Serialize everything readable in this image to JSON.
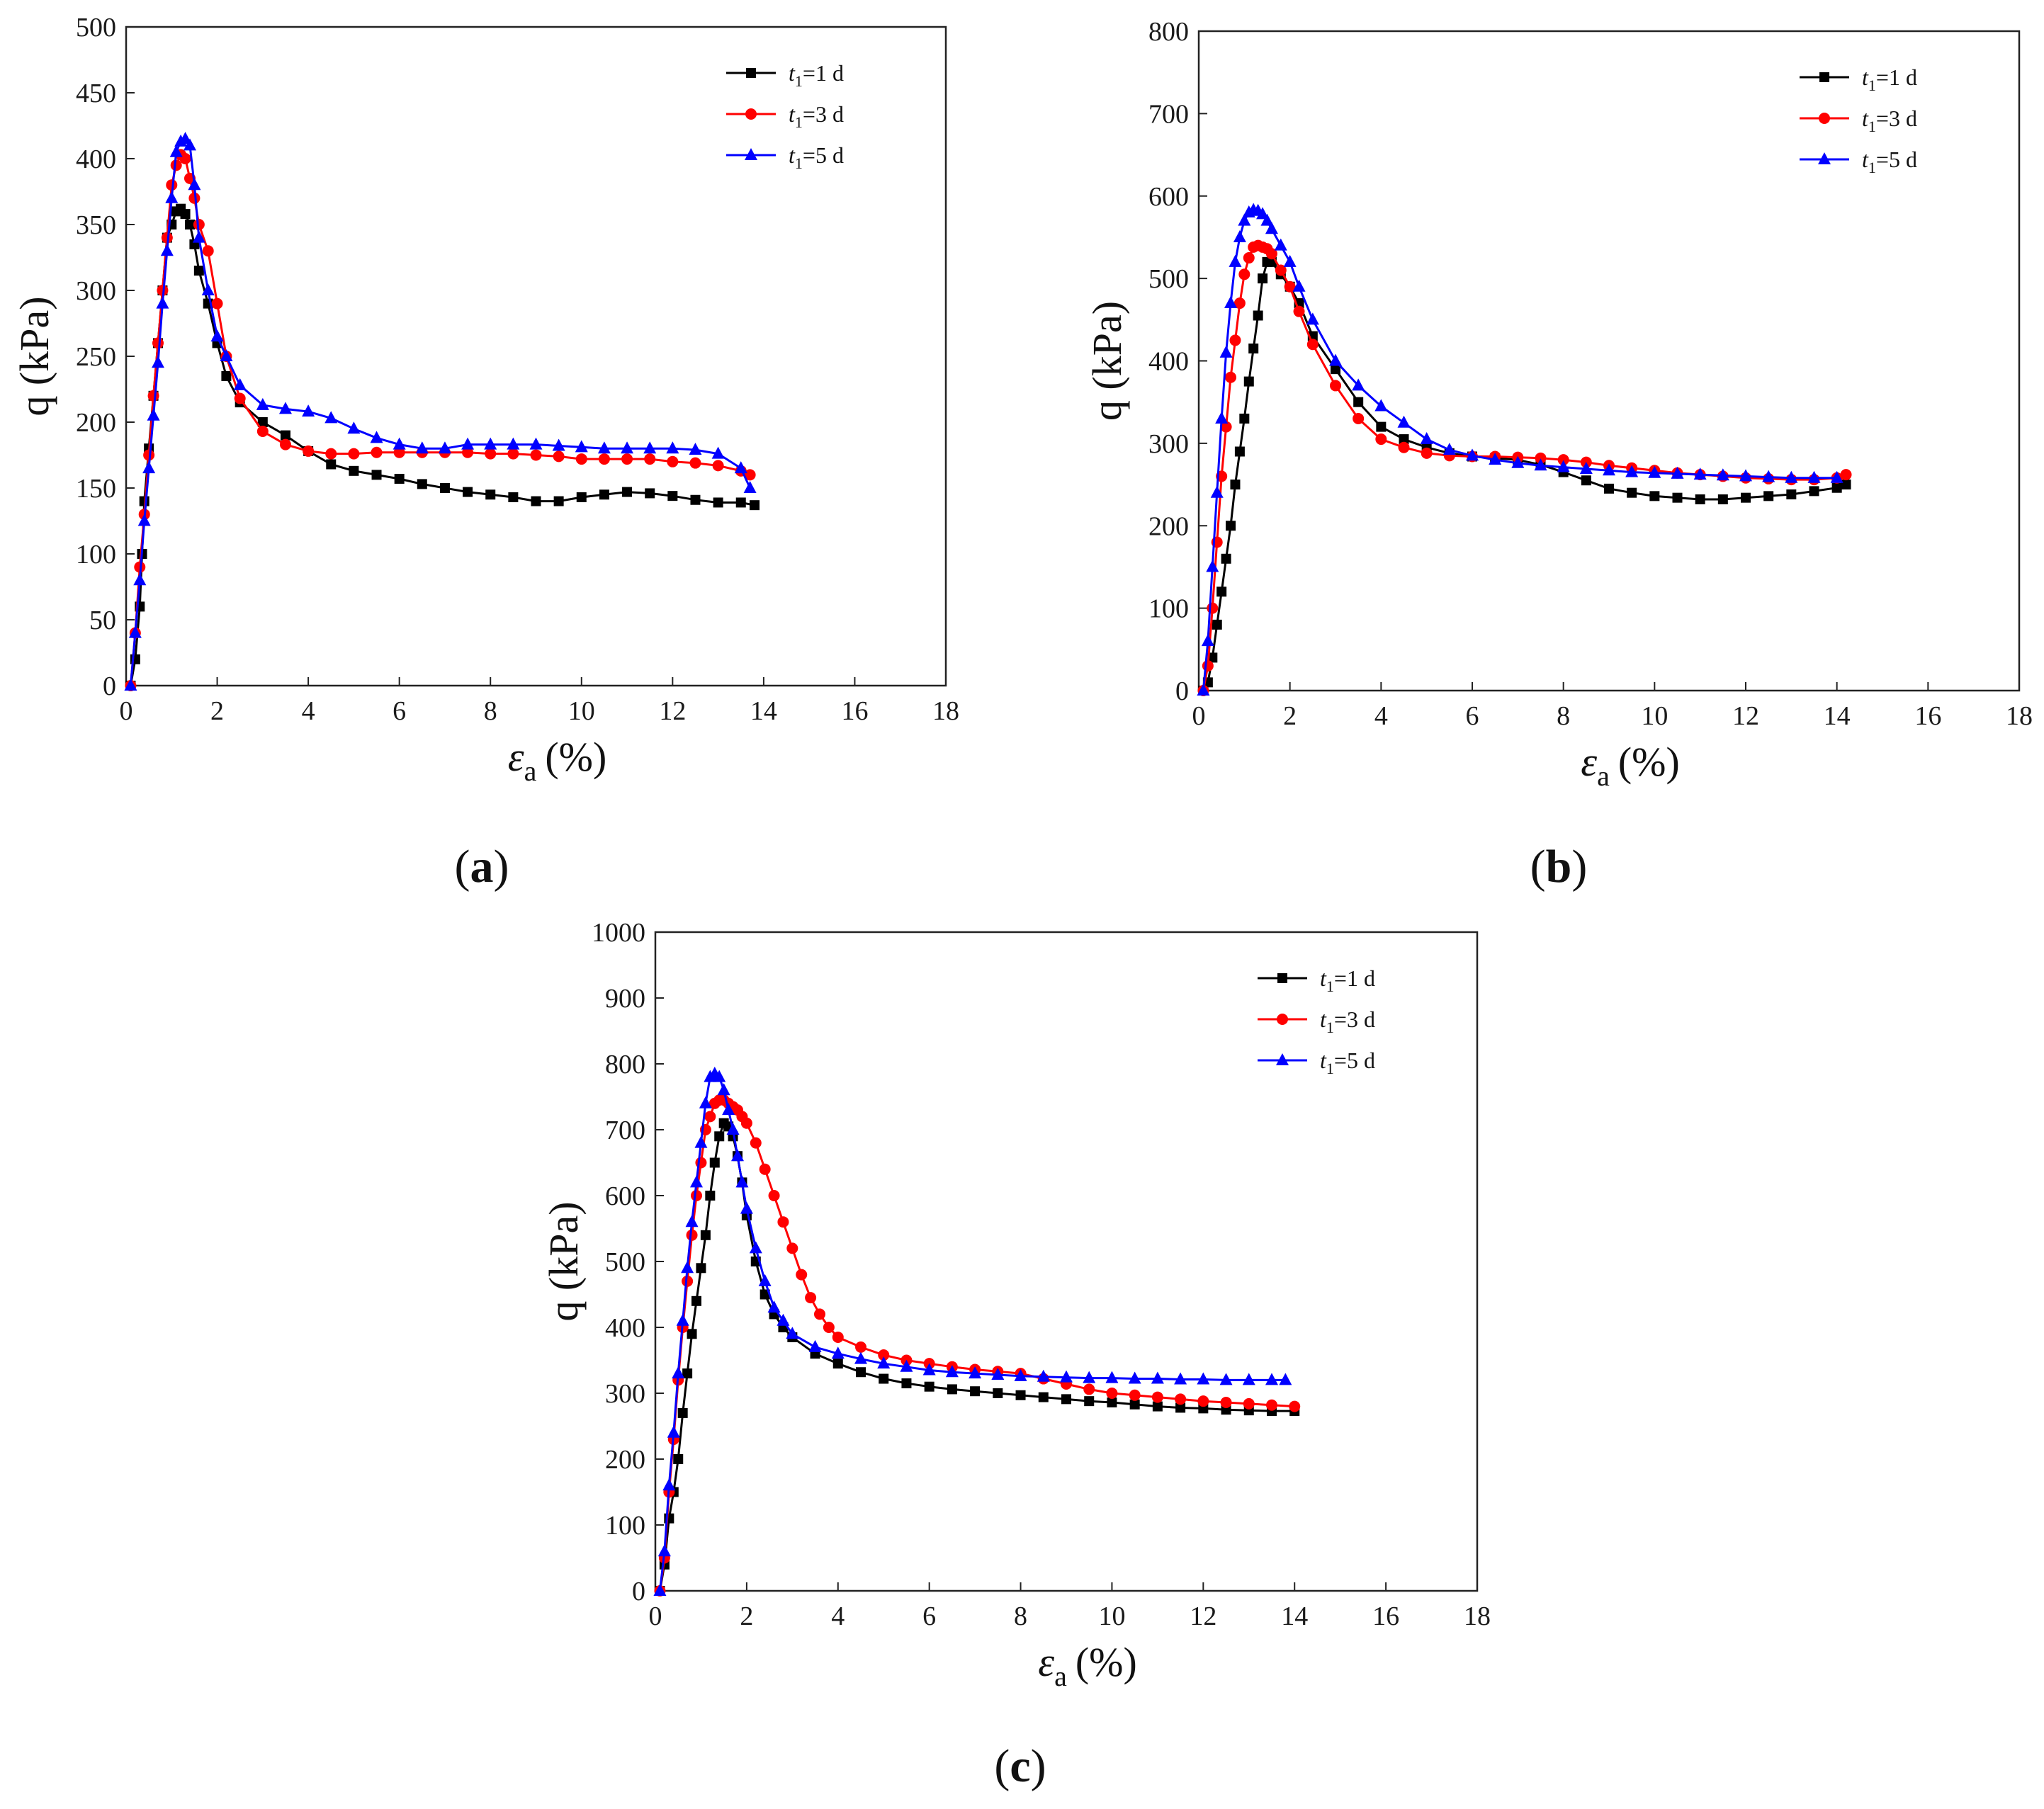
{
  "chart_data": [
    {
      "type": "line",
      "panel_label": "(a)",
      "panel_letter": "a",
      "xlabel": "εa (%)",
      "xlabel_main": "ε",
      "xlabel_sub": "a",
      "xlabel_unit": "(%)",
      "ylabel": "q (kPa)",
      "xlim": [
        0,
        18
      ],
      "ylim": [
        0,
        500
      ],
      "xticks": [
        0,
        2,
        4,
        6,
        8,
        10,
        12,
        14,
        16,
        18
      ],
      "yticks": [
        0,
        50,
        100,
        150,
        200,
        250,
        300,
        350,
        400,
        450,
        500
      ],
      "legend_position": "top-right",
      "series": [
        {
          "name": "t1=1 d",
          "label_main": "t",
          "label_sub": "1",
          "label_rest": "=1 d",
          "color": "#000000",
          "marker": "square",
          "x": [
            0.1,
            0.2,
            0.3,
            0.35,
            0.4,
            0.5,
            0.6,
            0.7,
            0.8,
            0.9,
            1.0,
            1.1,
            1.2,
            1.3,
            1.4,
            1.5,
            1.6,
            1.8,
            2.0,
            2.2,
            2.5,
            3.0,
            3.5,
            4.0,
            4.5,
            5.0,
            5.5,
            6.0,
            6.5,
            7.0,
            7.5,
            8.0,
            8.5,
            9.0,
            9.5,
            10.0,
            10.5,
            11.0,
            11.5,
            12.0,
            12.5,
            13.0,
            13.5,
            13.8
          ],
          "y": [
            0,
            20,
            60,
            100,
            140,
            180,
            220,
            260,
            300,
            340,
            350,
            360,
            362,
            358,
            350,
            335,
            315,
            290,
            260,
            235,
            215,
            200,
            190,
            178,
            168,
            163,
            160,
            157,
            153,
            150,
            147,
            145,
            143,
            140,
            140,
            143,
            145,
            147,
            146,
            144,
            141,
            139,
            139,
            137
          ]
        },
        {
          "name": "t1=3 d",
          "label_main": "t",
          "label_sub": "1",
          "label_rest": "=3 d",
          "color": "#ff0000",
          "marker": "circle",
          "x": [
            0.1,
            0.2,
            0.3,
            0.4,
            0.5,
            0.6,
            0.7,
            0.8,
            0.9,
            1.0,
            1.1,
            1.2,
            1.3,
            1.4,
            1.5,
            1.6,
            1.8,
            2.0,
            2.2,
            2.5,
            3.0,
            3.5,
            4.0,
            4.5,
            5.0,
            5.5,
            6.0,
            6.5,
            7.0,
            7.5,
            8.0,
            8.5,
            9.0,
            9.5,
            10.0,
            10.5,
            11.0,
            11.5,
            12.0,
            12.5,
            13.0,
            13.5,
            13.7
          ],
          "y": [
            0,
            40,
            90,
            130,
            175,
            220,
            260,
            300,
            340,
            380,
            395,
            403,
            400,
            385,
            370,
            350,
            330,
            290,
            250,
            218,
            193,
            183,
            178,
            176,
            176,
            177,
            177,
            177,
            177,
            177,
            176,
            176,
            175,
            174,
            172,
            172,
            172,
            172,
            170,
            169,
            167,
            163,
            160
          ]
        },
        {
          "name": "t1=5 d",
          "label_main": "t",
          "label_sub": "1",
          "label_rest": "=5 d",
          "color": "#0000ff",
          "marker": "triangle",
          "x": [
            0.1,
            0.2,
            0.3,
            0.4,
            0.5,
            0.6,
            0.7,
            0.8,
            0.9,
            1.0,
            1.1,
            1.2,
            1.3,
            1.4,
            1.5,
            1.6,
            1.8,
            2.0,
            2.2,
            2.5,
            3.0,
            3.5,
            4.0,
            4.5,
            5.0,
            5.5,
            6.0,
            6.5,
            7.0,
            7.5,
            8.0,
            8.5,
            9.0,
            9.5,
            10.0,
            10.5,
            11.0,
            11.5,
            12.0,
            12.5,
            13.0,
            13.5,
            13.7
          ],
          "y": [
            0,
            40,
            80,
            125,
            165,
            205,
            245,
            290,
            330,
            370,
            405,
            413,
            415,
            410,
            380,
            340,
            300,
            265,
            250,
            228,
            213,
            210,
            208,
            203,
            195,
            188,
            183,
            180,
            180,
            183,
            183,
            183,
            183,
            182,
            181,
            180,
            180,
            180,
            180,
            179,
            176,
            165,
            150
          ]
        }
      ]
    },
    {
      "type": "line",
      "panel_label": "(b)",
      "panel_letter": "b",
      "xlabel": "εa (%)",
      "xlabel_main": "ε",
      "xlabel_sub": "a",
      "xlabel_unit": "(%)",
      "ylabel": "q (kPa)",
      "xlim": [
        0,
        18
      ],
      "ylim": [
        0,
        800
      ],
      "xticks": [
        0,
        2,
        4,
        6,
        8,
        10,
        12,
        14,
        16,
        18
      ],
      "yticks": [
        0,
        100,
        200,
        300,
        400,
        500,
        600,
        700,
        800
      ],
      "legend_position": "top-right",
      "series": [
        {
          "name": "t1=1 d",
          "label_main": "t",
          "label_sub": "1",
          "label_rest": "=1 d",
          "color": "#000000",
          "marker": "square",
          "x": [
            0.1,
            0.2,
            0.3,
            0.4,
            0.5,
            0.6,
            0.7,
            0.8,
            0.9,
            1.0,
            1.1,
            1.2,
            1.3,
            1.4,
            1.5,
            1.6,
            1.8,
            2.0,
            2.2,
            2.5,
            3.0,
            3.5,
            4.0,
            4.5,
            5.0,
            5.5,
            6.0,
            6.5,
            7.0,
            7.5,
            8.0,
            8.5,
            9.0,
            9.5,
            10.0,
            10.5,
            11.0,
            11.5,
            12.0,
            12.5,
            13.0,
            13.5,
            14.0,
            14.2
          ],
          "y": [
            0,
            10,
            40,
            80,
            120,
            160,
            200,
            250,
            290,
            330,
            375,
            415,
            455,
            500,
            520,
            520,
            505,
            490,
            470,
            430,
            390,
            350,
            320,
            305,
            295,
            288,
            284,
            282,
            280,
            274,
            265,
            255,
            245,
            240,
            236,
            234,
            232,
            232,
            234,
            236,
            238,
            242,
            246,
            250
          ]
        },
        {
          "name": "t1=3 d",
          "label_main": "t",
          "label_sub": "1",
          "label_rest": "=3 d",
          "color": "#ff0000",
          "marker": "circle",
          "x": [
            0.1,
            0.2,
            0.3,
            0.4,
            0.5,
            0.6,
            0.7,
            0.8,
            0.9,
            1.0,
            1.1,
            1.2,
            1.3,
            1.4,
            1.5,
            1.6,
            1.8,
            2.0,
            2.2,
            2.5,
            3.0,
            3.5,
            4.0,
            4.5,
            5.0,
            5.5,
            6.0,
            6.5,
            7.0,
            7.5,
            8.0,
            8.5,
            9.0,
            9.5,
            10.0,
            10.5,
            11.0,
            11.5,
            12.0,
            12.5,
            13.0,
            13.5,
            14.0,
            14.2
          ],
          "y": [
            0,
            30,
            100,
            180,
            260,
            320,
            380,
            425,
            470,
            505,
            525,
            538,
            540,
            538,
            536,
            530,
            510,
            490,
            460,
            420,
            370,
            330,
            305,
            295,
            288,
            285,
            284,
            284,
            283,
            282,
            280,
            277,
            273,
            270,
            267,
            264,
            262,
            260,
            258,
            257,
            256,
            256,
            258,
            262
          ]
        },
        {
          "name": "t1=5 d",
          "label_main": "t",
          "label_sub": "1",
          "label_rest": "=5 d",
          "color": "#0000ff",
          "marker": "triangle",
          "x": [
            0.1,
            0.2,
            0.3,
            0.4,
            0.5,
            0.6,
            0.7,
            0.8,
            0.9,
            1.0,
            1.1,
            1.2,
            1.3,
            1.4,
            1.5,
            1.6,
            1.8,
            2.0,
            2.2,
            2.5,
            3.0,
            3.5,
            4.0,
            4.5,
            5.0,
            5.5,
            6.0,
            6.5,
            7.0,
            7.5,
            8.0,
            8.5,
            9.0,
            9.5,
            10.0,
            10.5,
            11.0,
            11.5,
            12.0,
            12.5,
            13.0,
            13.5,
            14.0
          ],
          "y": [
            0,
            60,
            150,
            240,
            330,
            410,
            470,
            520,
            550,
            570,
            580,
            583,
            582,
            578,
            570,
            560,
            540,
            520,
            490,
            450,
            400,
            370,
            345,
            325,
            305,
            292,
            285,
            280,
            276,
            273,
            271,
            269,
            267,
            265,
            264,
            263,
            262,
            261,
            260,
            259,
            258,
            258,
            258
          ]
        }
      ]
    },
    {
      "type": "line",
      "panel_label": "(c)",
      "panel_letter": "c",
      "xlabel": "εa (%)",
      "xlabel_main": "ε",
      "xlabel_sub": "a",
      "xlabel_unit": "(%)",
      "ylabel": "q (kPa)",
      "xlim": [
        0,
        18
      ],
      "ylim": [
        0,
        1000
      ],
      "xticks": [
        0,
        2,
        4,
        6,
        8,
        10,
        12,
        14,
        16,
        18
      ],
      "yticks": [
        0,
        100,
        200,
        300,
        400,
        500,
        600,
        700,
        800,
        900,
        1000
      ],
      "legend_position": "top-right",
      "series": [
        {
          "name": "t1=1 d",
          "label_main": "t",
          "label_sub": "1",
          "label_rest": "=1 d",
          "color": "#000000",
          "marker": "square",
          "x": [
            0.1,
            0.2,
            0.3,
            0.4,
            0.5,
            0.6,
            0.7,
            0.8,
            0.9,
            1.0,
            1.1,
            1.2,
            1.3,
            1.4,
            1.5,
            1.6,
            1.7,
            1.8,
            1.9,
            2.0,
            2.2,
            2.4,
            2.6,
            2.8,
            3.0,
            3.5,
            4.0,
            4.5,
            5.0,
            5.5,
            6.0,
            6.5,
            7.0,
            7.5,
            8.0,
            8.5,
            9.0,
            9.5,
            10.0,
            10.5,
            11.0,
            11.5,
            12.0,
            12.5,
            13.0,
            13.5,
            14.0
          ],
          "y": [
            0,
            40,
            110,
            150,
            200,
            270,
            330,
            390,
            440,
            490,
            540,
            600,
            650,
            690,
            710,
            705,
            690,
            660,
            620,
            570,
            500,
            450,
            420,
            400,
            385,
            360,
            345,
            332,
            322,
            315,
            310,
            306,
            303,
            300,
            297,
            294,
            291,
            288,
            286,
            283,
            280,
            278,
            277,
            275,
            274,
            273,
            273
          ]
        },
        {
          "name": "t1=3 d",
          "label_main": "t",
          "label_sub": "1",
          "label_rest": "=3 d",
          "color": "#ff0000",
          "marker": "circle",
          "x": [
            0.1,
            0.2,
            0.3,
            0.4,
            0.5,
            0.6,
            0.7,
            0.8,
            0.9,
            1.0,
            1.1,
            1.2,
            1.3,
            1.4,
            1.5,
            1.6,
            1.7,
            1.8,
            1.9,
            2.0,
            2.2,
            2.4,
            2.6,
            2.8,
            3.0,
            3.2,
            3.4,
            3.6,
            3.8,
            4.0,
            4.5,
            5.0,
            5.5,
            6.0,
            6.5,
            7.0,
            7.5,
            8.0,
            8.5,
            9.0,
            9.5,
            10.0,
            10.5,
            11.0,
            11.5,
            12.0,
            12.5,
            13.0,
            13.5,
            14.0
          ],
          "y": [
            0,
            50,
            150,
            230,
            320,
            400,
            470,
            540,
            600,
            650,
            700,
            720,
            740,
            745,
            745,
            740,
            735,
            730,
            720,
            710,
            680,
            640,
            600,
            560,
            520,
            480,
            445,
            420,
            400,
            385,
            370,
            358,
            350,
            345,
            340,
            336,
            333,
            330,
            322,
            314,
            306,
            300,
            297,
            294,
            291,
            288,
            286,
            284,
            282,
            280
          ]
        },
        {
          "name": "t1=5 d",
          "label_main": "t",
          "label_sub": "1",
          "label_rest": "=5 d",
          "color": "#0000ff",
          "marker": "triangle",
          "x": [
            0.1,
            0.2,
            0.3,
            0.4,
            0.5,
            0.6,
            0.7,
            0.8,
            0.9,
            1.0,
            1.1,
            1.2,
            1.3,
            1.4,
            1.5,
            1.6,
            1.7,
            1.8,
            1.9,
            2.0,
            2.2,
            2.4,
            2.6,
            2.8,
            3.0,
            3.5,
            4.0,
            4.5,
            5.0,
            5.5,
            6.0,
            6.5,
            7.0,
            7.5,
            8.0,
            8.5,
            9.0,
            9.5,
            10.0,
            10.5,
            11.0,
            11.5,
            12.0,
            12.5,
            13.0,
            13.5,
            13.8
          ],
          "y": [
            0,
            60,
            160,
            240,
            330,
            410,
            490,
            560,
            620,
            680,
            740,
            780,
            785,
            780,
            760,
            730,
            700,
            660,
            620,
            580,
            520,
            470,
            430,
            410,
            390,
            370,
            360,
            352,
            345,
            340,
            335,
            332,
            330,
            328,
            326,
            325,
            324,
            323,
            323,
            322,
            322,
            321,
            321,
            320,
            320,
            320,
            320
          ]
        }
      ]
    }
  ]
}
